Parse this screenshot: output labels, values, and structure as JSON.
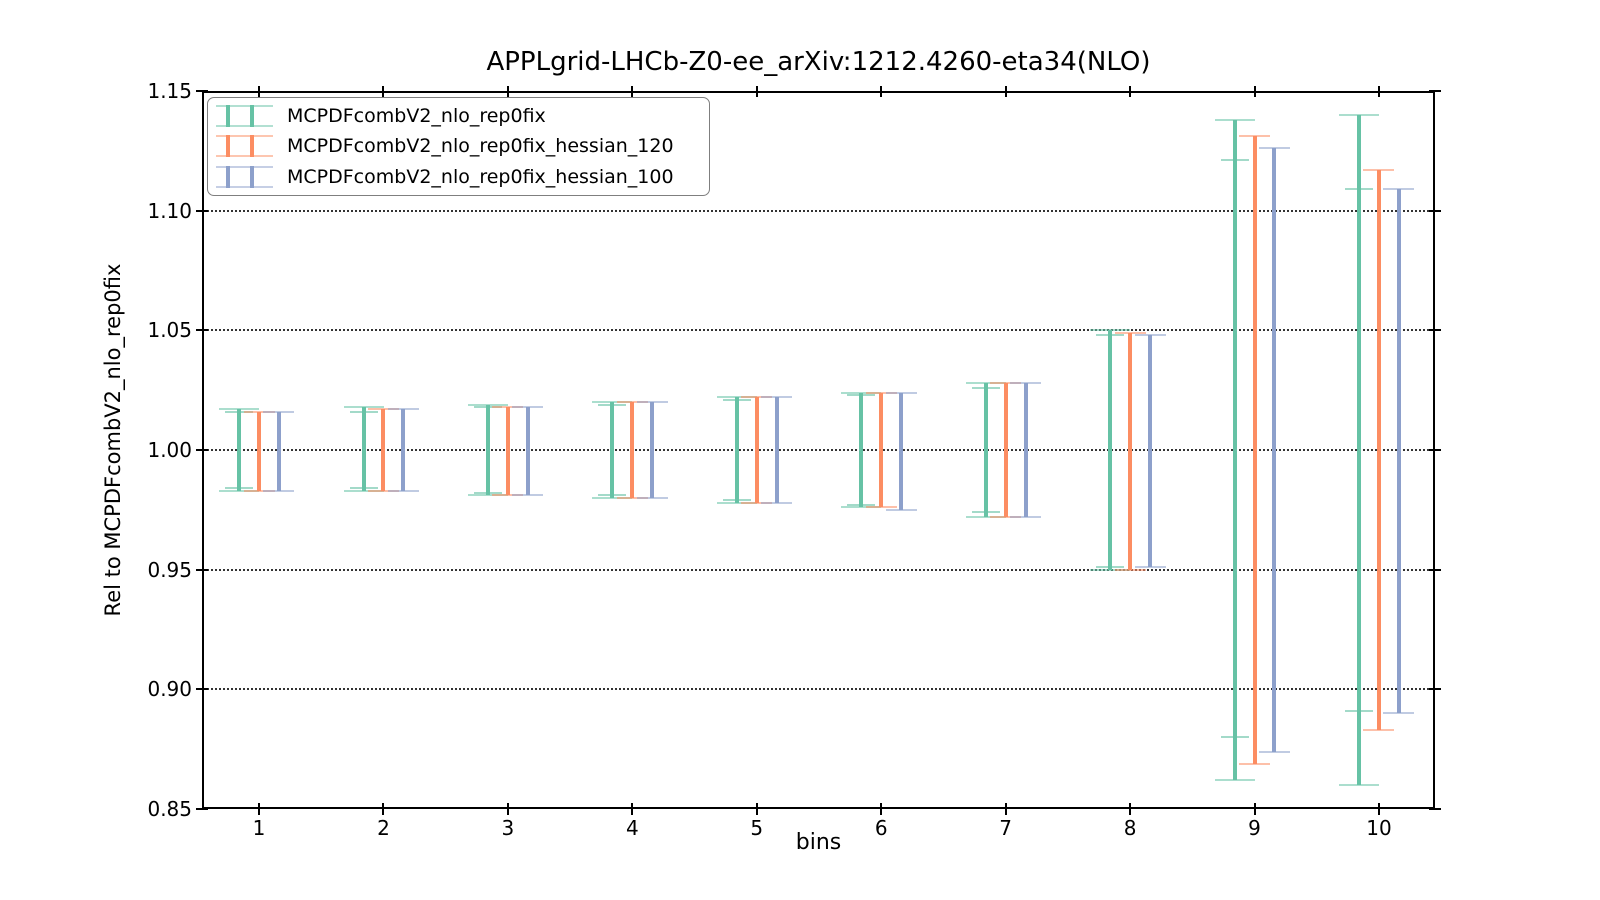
{
  "title": "APPLgrid-LHCb-Z0-ee_arXiv:1212.4260-eta34(NLO)",
  "axes": {
    "xlabel": "bins",
    "ylabel": "Rel to MCPDFcombV2_nlo_rep0fix",
    "x_ticks": [
      "1",
      "2",
      "3",
      "4",
      "5",
      "6",
      "7",
      "8",
      "9",
      "10"
    ],
    "y_ticks": [
      "0.85",
      "0.90",
      "0.95",
      "1.00",
      "1.05",
      "1.10",
      "1.15"
    ],
    "ylim": [
      0.85,
      1.15
    ],
    "grid": "horizontal dotted at major y ticks"
  },
  "legend": {
    "position": "upper left",
    "entries": [
      {
        "label": "MCPDFcombV2_nlo_rep0fix",
        "color": "#66c2a5"
      },
      {
        "label": "MCPDFcombV2_nlo_rep0fix_hessian_120",
        "color": "#fc8d62"
      },
      {
        "label": "MCPDFcombV2_nlo_rep0fix_hessian_100",
        "color": "#8da0cb"
      }
    ]
  },
  "colors": {
    "green": "#66c2a5",
    "orange": "#fc8d62",
    "blue": "#8da0cb",
    "grid": "#000000",
    "spine": "#000000",
    "background": "#ffffff"
  },
  "chart_data": {
    "type": "errorbar",
    "title": "APPLgrid-LHCb-Z0-ee_arXiv:1212.4260-eta34(NLO)",
    "xlabel": "bins",
    "ylabel": "Rel to MCPDFcombV2_nlo_rep0fix",
    "x": [
      1,
      2,
      3,
      4,
      5,
      6,
      7,
      8,
      9,
      10
    ],
    "ylim": [
      0.85,
      1.15
    ],
    "grid": true,
    "legend_position": "upper left",
    "series": [
      {
        "name": "MCPDFcombV2_nlo_rep0fix",
        "color": "#66c2a5",
        "offset_bins": -0.16,
        "hi": [
          1.017,
          1.018,
          1.019,
          1.02,
          1.022,
          1.024,
          1.028,
          1.05,
          1.138,
          1.14
        ],
        "lo": [
          0.983,
          0.983,
          0.981,
          0.98,
          0.978,
          0.976,
          0.972,
          0.95,
          0.862,
          0.86
        ],
        "inner_hi": [
          1.016,
          1.016,
          1.018,
          1.019,
          1.021,
          1.023,
          1.026,
          1.048,
          1.121,
          1.109
        ],
        "inner_lo": [
          0.984,
          0.984,
          0.982,
          0.981,
          0.979,
          0.977,
          0.974,
          0.951,
          0.88,
          0.891
        ]
      },
      {
        "name": "MCPDFcombV2_nlo_rep0fix_hessian_120",
        "color": "#fc8d62",
        "offset_bins": 0,
        "hi": [
          1.016,
          1.017,
          1.018,
          1.02,
          1.022,
          1.024,
          1.028,
          1.049,
          1.131,
          1.117
        ],
        "lo": [
          0.983,
          0.983,
          0.981,
          0.98,
          0.978,
          0.976,
          0.972,
          0.95,
          0.869,
          0.883
        ]
      },
      {
        "name": "MCPDFcombV2_nlo_rep0fix_hessian_100",
        "color": "#8da0cb",
        "offset_bins": 0.16,
        "hi": [
          1.016,
          1.017,
          1.018,
          1.02,
          1.022,
          1.024,
          1.028,
          1.048,
          1.126,
          1.109
        ],
        "lo": [
          0.983,
          0.983,
          0.981,
          0.98,
          0.978,
          0.975,
          0.972,
          0.951,
          0.874,
          0.89
        ]
      }
    ]
  }
}
